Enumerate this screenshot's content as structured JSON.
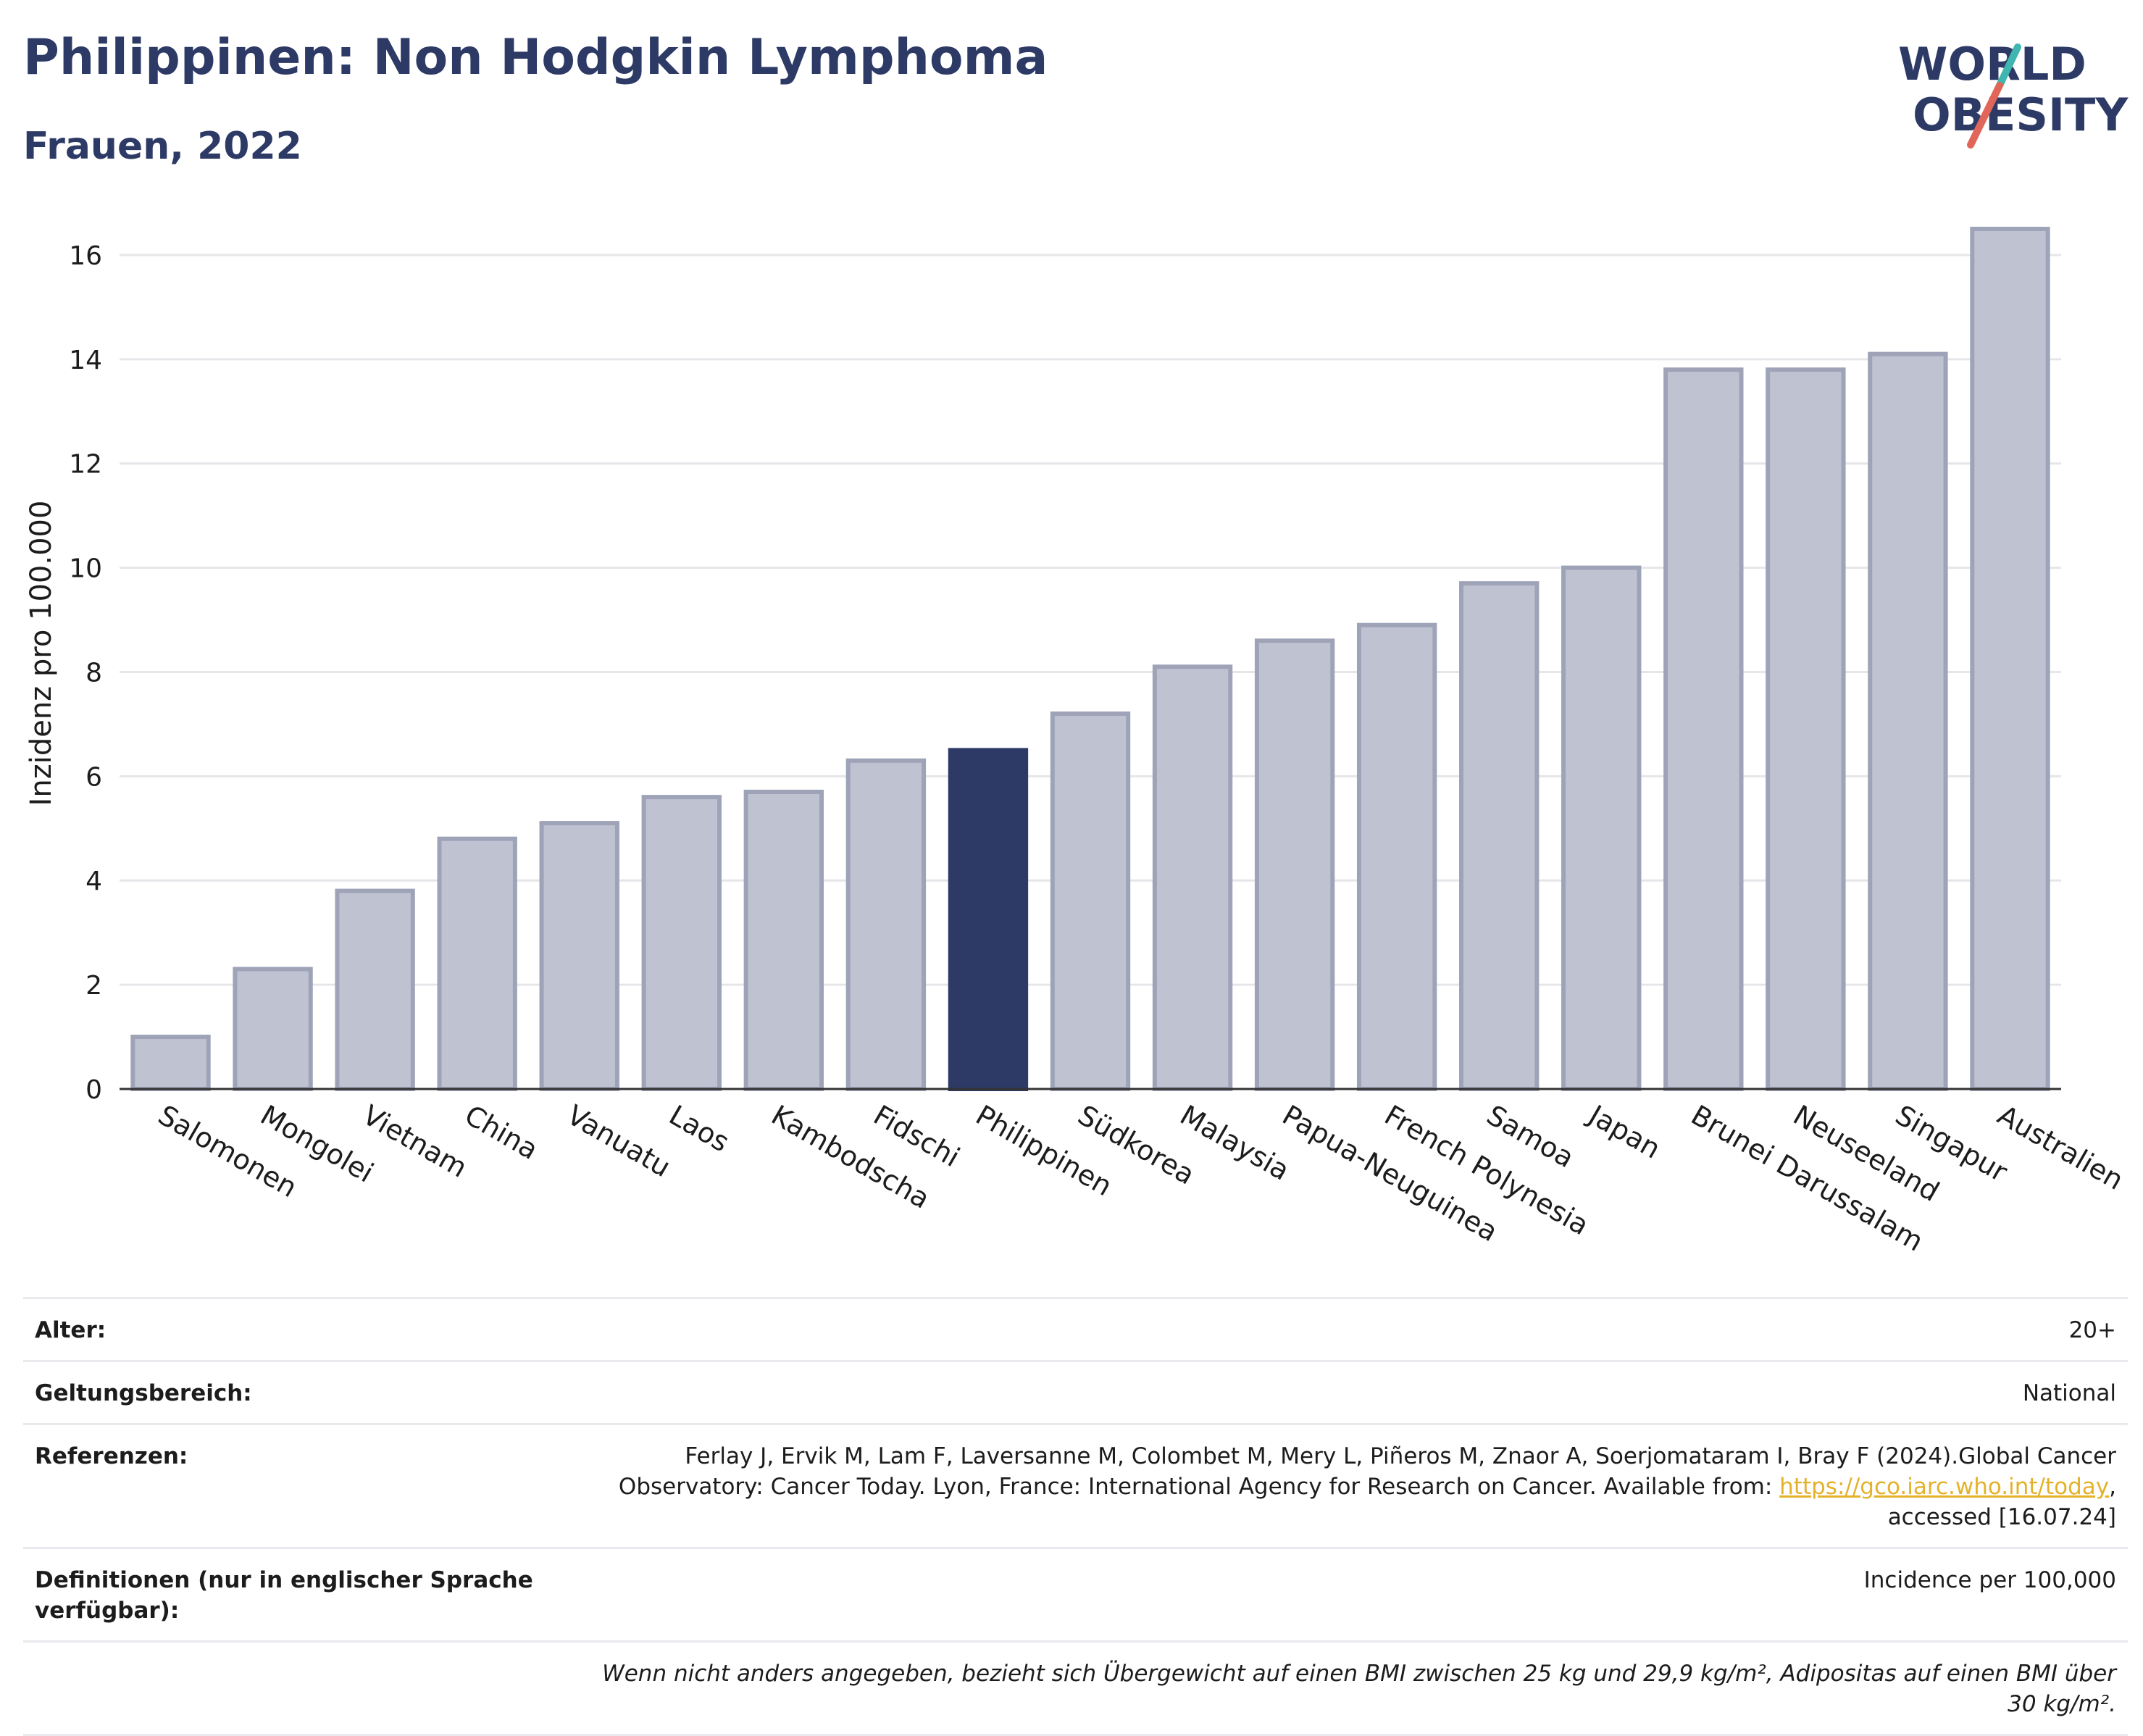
{
  "header": {
    "title": "Philippinen: Non Hodgkin Lymphoma",
    "subtitle": "Frauen, 2022"
  },
  "logo": {
    "line1": "WORLD",
    "line2": "OBESITY",
    "colors": {
      "text": "#2d3a66",
      "slash_top": "#3fb6b0",
      "slash_bottom": "#e0665a"
    }
  },
  "chart_data": {
    "type": "bar",
    "ylabel": "Inzidenz pro 100.000",
    "ylim": [
      0,
      17
    ],
    "yticks": [
      0,
      2,
      4,
      6,
      8,
      10,
      12,
      14,
      16
    ],
    "grid": true,
    "categories": [
      "Salomonen",
      "Mongolei",
      "Vietnam",
      "China",
      "Vanuatu",
      "Laos",
      "Kambodscha",
      "Fidschi",
      "Philippinen",
      "Südkorea",
      "Malaysia",
      "Papua-Neuguinea",
      "French Polynesia",
      "Samoa",
      "Japan",
      "Brunei Darussalam",
      "Neuseeland",
      "Singapur",
      "Australien"
    ],
    "values": [
      1.0,
      2.3,
      3.8,
      4.8,
      5.1,
      5.6,
      5.7,
      6.3,
      6.5,
      7.2,
      8.1,
      8.6,
      8.9,
      9.7,
      10.0,
      13.8,
      13.8,
      14.1,
      16.5
    ],
    "highlight": "Philippinen",
    "colors": {
      "bar": "#bfc3d1",
      "bar_border": "#9ea3b8",
      "highlight": "#2d3a66",
      "grid": "#e6e6ea",
      "axis": "#333333"
    }
  },
  "footer": {
    "age_label": "Alter:",
    "age_value": "20+",
    "scope_label": "Geltungsbereich:",
    "scope_value": "National",
    "refs_label": "Referenzen:",
    "refs_text_1": "Ferlay J, Ervik M, Lam F, Laversanne M, Colombet M, Mery L, Piñeros M, Znaor A, Soerjomataram I, Bray F (2024).Global Cancer Observatory: Cancer Today. Lyon, France: International Agency for Research on Cancer. Available from: ",
    "refs_link": "https://gco.iarc.who.int/today",
    "refs_text_2": ", accessed [16.07.24]",
    "def_label": "Definitionen (nur in englischer Sprache verfügbar):",
    "def_value": "Incidence per 100,000",
    "note": "Wenn nicht anders angegeben, bezieht sich Übergewicht auf einen BMI zwischen 25 kg und 29,9 kg/m², Adipositas auf einen BMI über 30 kg/m²."
  }
}
